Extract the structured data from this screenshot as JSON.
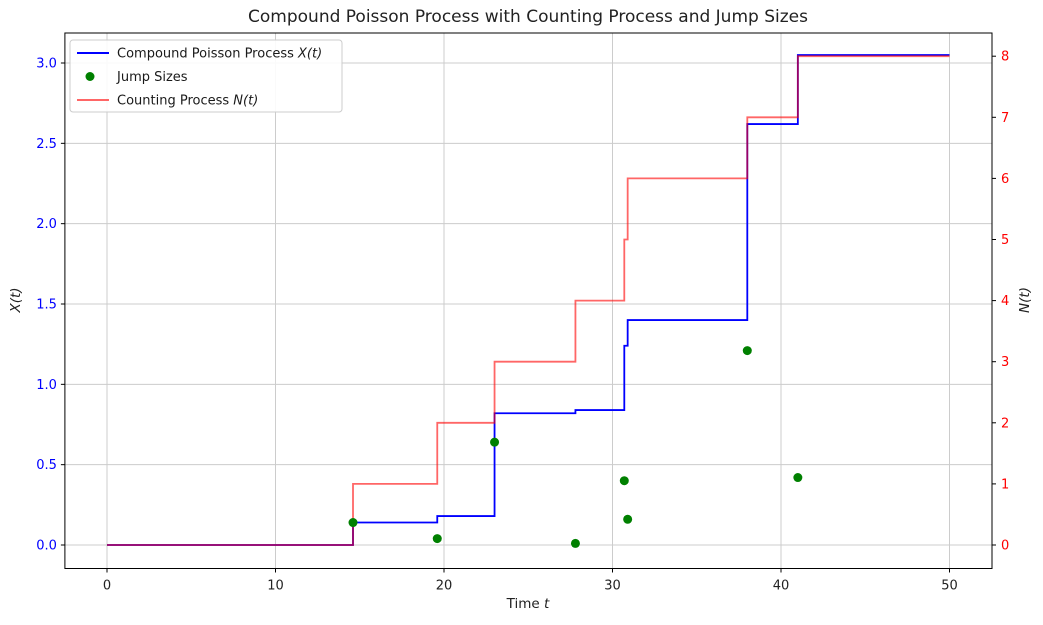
{
  "chart_data": {
    "type": "line",
    "title": "Compound Poisson Process with Counting Process and Jump Sizes",
    "xlabel_plain": "Time ",
    "xlabel_math": "t",
    "ylabel_left_math": "X(t)",
    "ylabel_right_math": "N(t)",
    "xlim": [
      -2.5,
      52.5
    ],
    "ylim_left": [
      -0.15,
      3.19
    ],
    "ylim_right": [
      -0.38,
      8.38
    ],
    "grid": true,
    "legend_position": "upper-left",
    "jump_times": [
      14.6,
      19.6,
      23.0,
      27.8,
      30.7,
      30.9,
      38.0,
      41.0
    ],
    "jump_sizes": [
      0.14,
      0.04,
      0.64,
      0.01,
      0.4,
      0.16,
      1.21,
      0.42
    ],
    "series": [
      {
        "name": "Compound Poisson Process X(t)",
        "type": "step",
        "axis": "left",
        "color": "#0000ff",
        "opacity": 1,
        "x": [
          0,
          14.6,
          19.6,
          23.0,
          27.8,
          30.7,
          30.9,
          38.0,
          41.0,
          50
        ],
        "y": [
          0,
          0.14,
          0.18,
          0.82,
          0.84,
          1.24,
          1.4,
          2.62,
          3.05,
          3.05
        ]
      },
      {
        "name": "Jump Sizes",
        "type": "scatter",
        "axis": "left",
        "color": "#008000",
        "opacity": 1,
        "x": [
          14.6,
          19.6,
          23.0,
          27.8,
          30.7,
          30.9,
          38.0,
          41.0
        ],
        "y": [
          0.14,
          0.04,
          0.64,
          0.01,
          0.4,
          0.16,
          1.21,
          0.42
        ]
      },
      {
        "name": "Counting Process N(t)",
        "type": "step",
        "axis": "right",
        "color": "#ff0000",
        "opacity": 0.6,
        "x": [
          0,
          14.6,
          19.6,
          23.0,
          27.8,
          30.7,
          30.9,
          38.0,
          41.0,
          50
        ],
        "y": [
          0,
          1,
          2,
          3,
          4,
          5,
          6,
          7,
          8,
          8
        ]
      }
    ]
  },
  "axes": {
    "x": {
      "label_plain": "Time ",
      "label_math": "t",
      "tick_labels": [
        "0",
        "10",
        "20",
        "30",
        "40",
        "50"
      ],
      "tick_values": [
        0,
        10,
        20,
        30,
        40,
        50
      ],
      "color": "#000000"
    },
    "y_left": {
      "label_math": "X(t)",
      "tick_labels": [
        "0.0",
        "0.5",
        "1.0",
        "1.5",
        "2.0",
        "2.5",
        "3.0"
      ],
      "tick_values": [
        0,
        0.5,
        1.0,
        1.5,
        2.0,
        2.5,
        3.0
      ],
      "color": "#0000ff"
    },
    "y_right": {
      "label_math": "N(t)",
      "tick_labels": [
        "0",
        "1",
        "2",
        "3",
        "4",
        "5",
        "6",
        "7",
        "8"
      ],
      "tick_values": [
        0,
        1,
        2,
        3,
        4,
        5,
        6,
        7,
        8
      ],
      "color": "#ff0000"
    }
  },
  "legend": {
    "items": [
      {
        "label_plain": "Compound Poisson Process ",
        "label_math": "X(t)"
      },
      {
        "label_plain": "Jump Sizes",
        "label_math": ""
      },
      {
        "label_plain": "Counting Process ",
        "label_math": "N(t)"
      }
    ]
  },
  "style": {
    "grid_color": "#cccccc",
    "spine_color": "#000000",
    "background": "#ffffff"
  }
}
